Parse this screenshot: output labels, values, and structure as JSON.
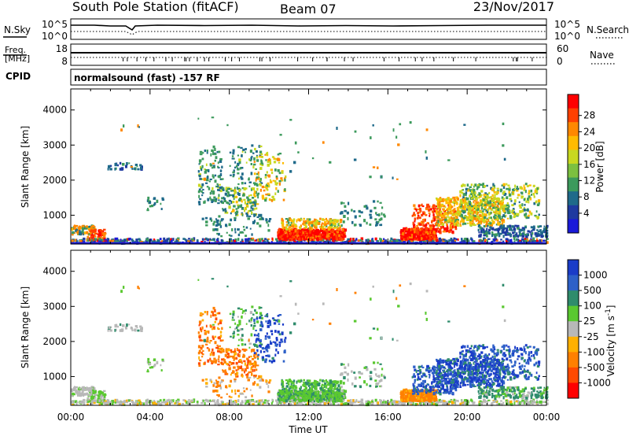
{
  "header": {
    "title": "South Pole Station (fitACF)",
    "beam": "Beam 07",
    "date": "23/Nov/2017"
  },
  "strips": {
    "nsky_label": "N.Sky",
    "nsearch_label": "N.Search",
    "noise_ticks_left": [
      "10^5",
      "10^0"
    ],
    "noise_ticks_right": [
      "10^5",
      "10^0"
    ],
    "freq_label_top": "Freq.",
    "freq_label_bottom": "[MHz]",
    "freq_ticks": [
      "18",
      "8"
    ],
    "nave_label": "Nave",
    "nave_ticks": [
      "60",
      "0"
    ],
    "cpid_label": "CPID",
    "cpid_text": "normalsound (fast) -157 RF"
  },
  "chart_data": [
    {
      "type": "heatmap",
      "name": "power",
      "ylabel": "Slant Range [km]",
      "xlabel": "",
      "ylim": [
        180,
        4600
      ],
      "yticks": [
        "1000",
        "2000",
        "3000",
        "4000"
      ],
      "xticks": [
        "00:00",
        "04:00",
        "08:00",
        "12:00",
        "16:00",
        "20:00",
        "00:00"
      ],
      "colorbar": {
        "label": "Power [dB]",
        "ticks": [
          "28",
          "24",
          "20",
          "16",
          "12",
          "8",
          "4"
        ],
        "colors": [
          "#ff0000",
          "#ff4000",
          "#ff8800",
          "#ffbb00",
          "#c8d820",
          "#7cc040",
          "#3c9a5c",
          "#1f6a8a",
          "#1f3aa0",
          "#1a1ad8"
        ]
      }
    },
    {
      "type": "heatmap",
      "name": "velocity",
      "ylabel": "Slant Range [km]",
      "xlabel": "Time UT",
      "ylim": [
        180,
        4600
      ],
      "yticks": [
        "1000",
        "2000",
        "3000",
        "4000"
      ],
      "xticks": [
        "00:00",
        "04:00",
        "08:00",
        "12:00",
        "16:00",
        "20:00",
        "00:00"
      ],
      "colorbar": {
        "label": "Velocity [m s",
        "label_sup": "-1",
        "label_end": "]",
        "ticks": [
          "1000",
          "500",
          "100",
          "25",
          "-25",
          "-100",
          "-500",
          "-1000"
        ],
        "colors": [
          "#1a3cc8",
          "#2d60c8",
          "#2f8c6c",
          "#5ac830",
          "#b8b8b8",
          "#ffb000",
          "#ff8000",
          "#ff4a00",
          "#ff0000"
        ]
      }
    }
  ]
}
